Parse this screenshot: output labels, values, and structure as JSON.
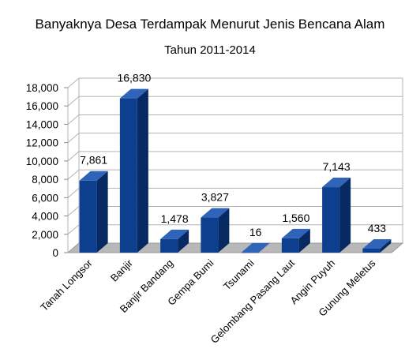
{
  "chart_data": {
    "type": "bar",
    "title": "Banyaknya Desa Terdampak Menurut Jenis Bencana Alam",
    "subtitle": "Tahun 2011-2014",
    "xlabel": "",
    "ylabel": "",
    "categories": [
      "Tanah Longsor",
      "Banjir",
      "Banjir Bandang",
      "Gempa Bumi",
      "Tsunami",
      "Gelombang Pasang Laut",
      "Angin Puyuh",
      "Gunung Meletus"
    ],
    "values": [
      7861,
      16830,
      1478,
      3827,
      16,
      1560,
      7143,
      433
    ],
    "data_labels": [
      "7,861",
      "16,830",
      "1,478",
      "3,827",
      "16",
      "1,560",
      "7,143",
      "433"
    ],
    "ylim": [
      0,
      18000
    ],
    "yticks": [
      0,
      2000,
      4000,
      6000,
      8000,
      10000,
      12000,
      14000,
      16000,
      18000
    ],
    "ytick_labels": [
      "0",
      "2,000",
      "4,000",
      "6,000",
      "8,000",
      "10,000",
      "12,000",
      "14,000",
      "16,000",
      "18,000"
    ],
    "grid": true,
    "legend": "none",
    "style": "3d-bar",
    "bar_color": "#0d3f8f",
    "bar_top_color": "#2f64b8",
    "bar_side_color": "#082a63",
    "grid_color": "#b3b3b3",
    "floor_color": "#b8b8b8"
  }
}
